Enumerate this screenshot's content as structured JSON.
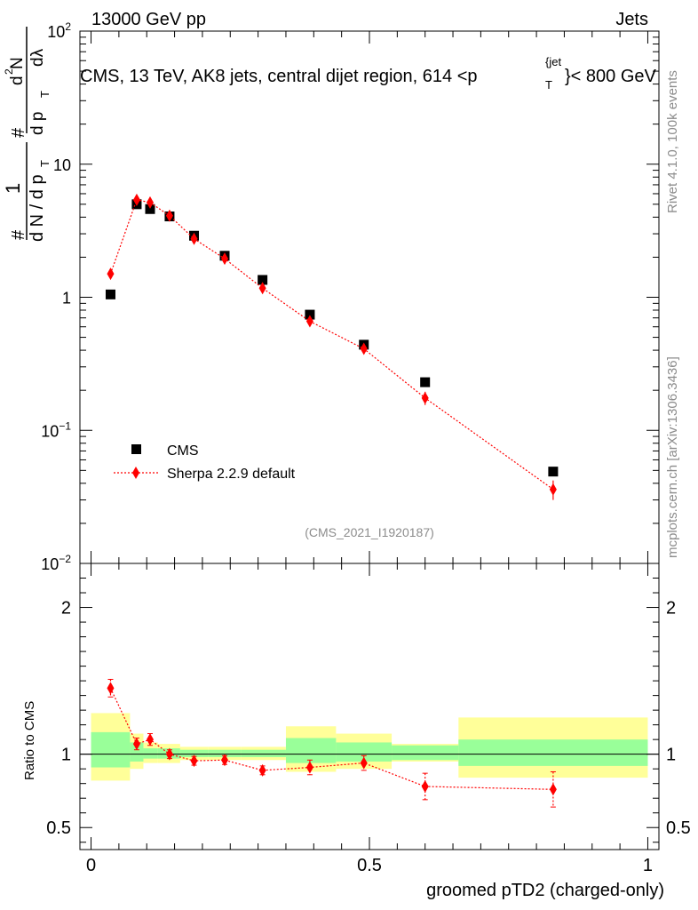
{
  "header": {
    "beam_label": "13000 GeV pp",
    "process_label": "Jets",
    "plot_title_main": "CMS, 13 TeV, AK8 jets, central dijet region, 614 <p",
    "plot_title_sub": "T",
    "plot_title_sup": "{jet",
    "plot_title_end": "}< 800 GeV",
    "rivet_tag": "Rivet 4.1.0,  100k events",
    "site_tag": "mcplots.cern.ch [arXiv:1306.3436]",
    "analysis_id": "(CMS_2021_I1920187)"
  },
  "colors": {
    "data_marker": "#000000",
    "mc_line": "#ff0000",
    "band_inner": "#99ff99",
    "band_outer": "#ffff99"
  },
  "chart_data": [
    {
      "type": "scatter",
      "panel": "main",
      "title": "CMS, 13 TeV, AK8 jets, central dijet region, 614 < pT jet < 800 GeV",
      "ylabel": "1/dN/dpT  d²N/dpT dλ",
      "ylabel_parts": {
        "num1": "#",
        "one": "1",
        "den": "d N / d p",
        "sub": "T",
        "num2": "#",
        "num_frac": "d",
        "num_sup": "2",
        "num_n": "N",
        "den2": "d p",
        "den2_sub": "T",
        "dlam": "dλ"
      },
      "yscale": "log",
      "ylim": [
        0.01,
        100
      ],
      "xlim": [
        -0.02,
        1.02
      ],
      "yticks": [
        {
          "value": 100,
          "base": "10",
          "exp": "2"
        },
        {
          "value": 10,
          "base": "10",
          "exp": ""
        },
        {
          "value": 1,
          "base": "1",
          "exp": ""
        },
        {
          "value": 0.1,
          "base": "10",
          "exp": "−1"
        },
        {
          "value": 0.01,
          "base": "10",
          "exp": "−2"
        }
      ],
      "legend_position": "lower-left",
      "series": [
        {
          "name": "CMS",
          "marker": "square",
          "x": [
            0.035,
            0.082,
            0.106,
            0.141,
            0.185,
            0.24,
            0.308,
            0.393,
            0.49,
            0.6,
            0.83
          ],
          "y": [
            1.05,
            5.0,
            4.6,
            4.05,
            2.9,
            2.05,
            1.35,
            0.74,
            0.44,
            0.23,
            0.049
          ]
        },
        {
          "name": "Sherpa 2.2.9 default",
          "marker": "diamond",
          "x": [
            0.035,
            0.082,
            0.106,
            0.141,
            0.185,
            0.24,
            0.308,
            0.393,
            0.49,
            0.6,
            0.83
          ],
          "y": [
            1.5,
            5.4,
            5.15,
            4.1,
            2.75,
            1.95,
            1.17,
            0.66,
            0.41,
            0.175,
            0.036
          ],
          "yerr": [
            0.06,
            0.15,
            0.15,
            0.1,
            0.08,
            0.06,
            0.05,
            0.03,
            0.03,
            0.02,
            0.006
          ]
        }
      ]
    },
    {
      "type": "scatter",
      "panel": "ratio",
      "xlabel": "groomed pTD2 (charged-only)",
      "ylabel": "Ratio to CMS",
      "ylim": [
        0.35,
        2.3
      ],
      "xlim": [
        -0.02,
        1.02
      ],
      "yticks": [
        {
          "value": 2,
          "label": "2"
        },
        {
          "value": 1,
          "label": "1"
        },
        {
          "value": 0.5,
          "label": "0.5"
        }
      ],
      "xticks": [
        {
          "value": 0,
          "label": "0"
        },
        {
          "value": 0.5,
          "label": "0.5"
        },
        {
          "value": 1,
          "label": "1"
        }
      ],
      "bins": [
        0,
        0.07,
        0.094,
        0.12,
        0.16,
        0.21,
        0.27,
        0.35,
        0.44,
        0.54,
        0.66,
        1.0
      ],
      "band_inner": [
        [
          0.91,
          1.15
        ],
        [
          0.95,
          1.08
        ],
        [
          0.97,
          1.04
        ],
        [
          0.97,
          1.04
        ],
        [
          0.98,
          1.03
        ],
        [
          0.98,
          1.03
        ],
        [
          0.98,
          1.03
        ],
        [
          0.94,
          1.11
        ],
        [
          0.95,
          1.08
        ],
        [
          0.96,
          1.06
        ],
        [
          0.92,
          1.1
        ]
      ],
      "band_outer": [
        [
          0.82,
          1.28
        ],
        [
          0.9,
          1.14
        ],
        [
          0.94,
          1.08
        ],
        [
          0.94,
          1.07
        ],
        [
          0.96,
          1.05
        ],
        [
          0.96,
          1.05
        ],
        [
          0.96,
          1.05
        ],
        [
          0.88,
          1.19
        ],
        [
          0.9,
          1.14
        ],
        [
          0.95,
          1.07
        ],
        [
          0.84,
          1.25
        ]
      ],
      "series": [
        {
          "name": "Sherpa 2.2.9 default",
          "x": [
            0.035,
            0.082,
            0.106,
            0.141,
            0.185,
            0.24,
            0.308,
            0.393,
            0.49,
            0.6,
            0.83
          ],
          "y": [
            1.45,
            1.07,
            1.1,
            1.0,
            0.955,
            0.96,
            0.89,
            0.91,
            0.94,
            0.78,
            0.76
          ],
          "yerr": [
            0.06,
            0.04,
            0.04,
            0.03,
            0.03,
            0.03,
            0.03,
            0.05,
            0.05,
            0.09,
            0.12
          ]
        }
      ]
    }
  ]
}
